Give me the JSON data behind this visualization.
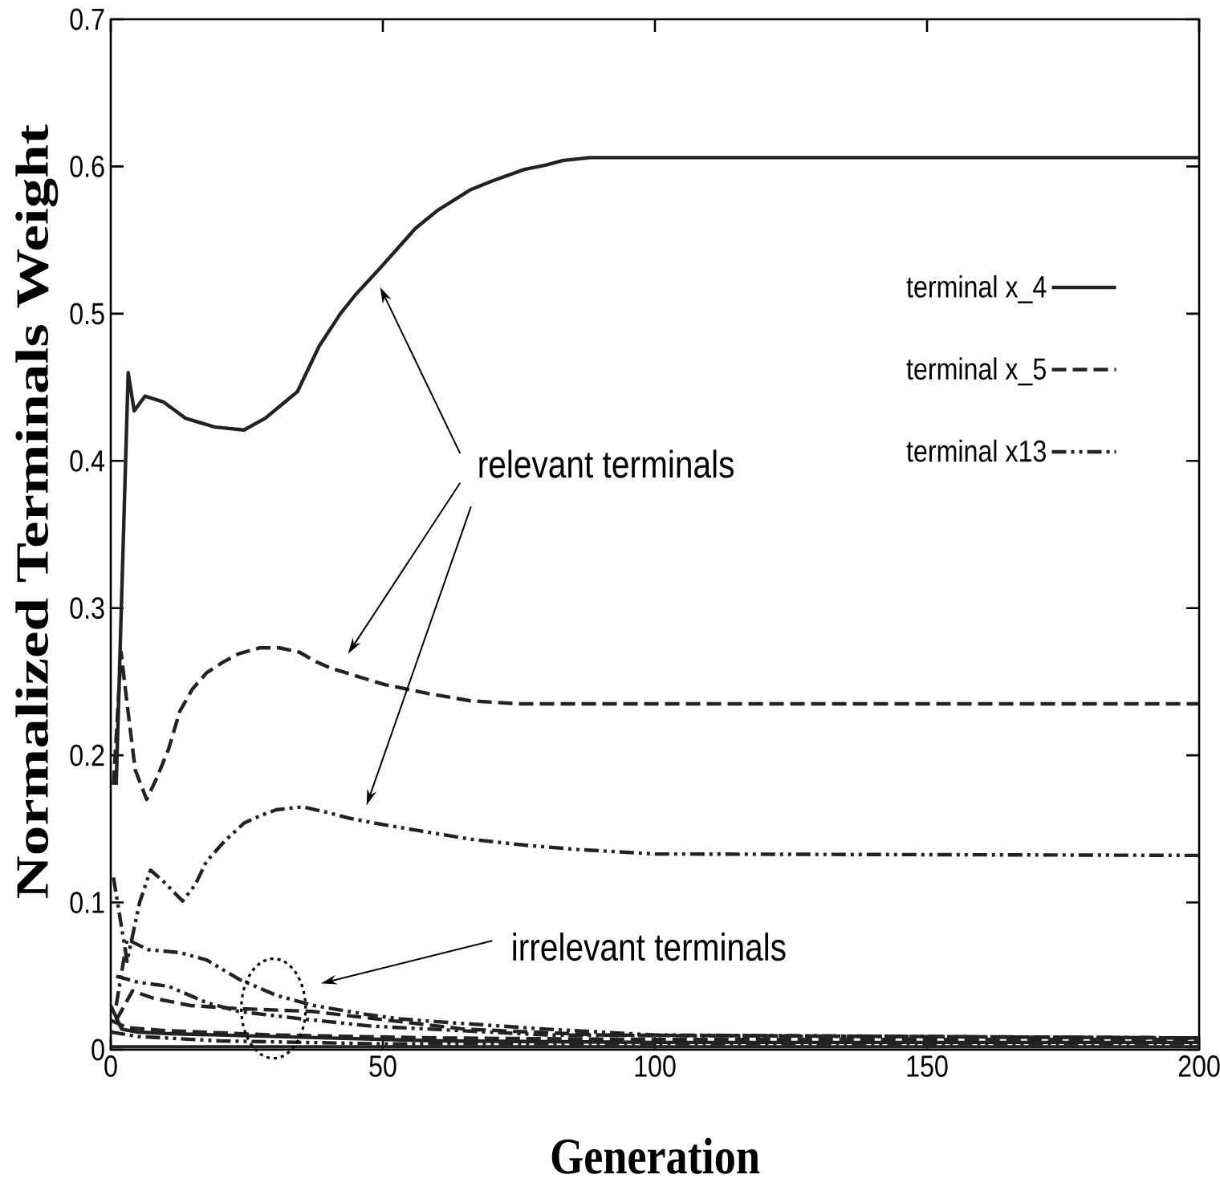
{
  "chart_data": {
    "type": "line",
    "xlabel": "Generation",
    "ylabel": "Normalized Terminals Weight",
    "xlim": [
      0,
      200
    ],
    "ylim": [
      0,
      0.7
    ],
    "xticks": [
      0,
      50,
      100,
      150,
      200
    ],
    "yticks": [
      0,
      0.1,
      0.2,
      0.3,
      0.4,
      0.5,
      0.6,
      0.7
    ],
    "legend": "right",
    "series": [
      {
        "name": "terminal x_4",
        "color": "#222222",
        "line_style": "solid",
        "x": [
          1,
          3.2,
          4.3,
          6.3,
          9.7,
          13.7,
          19.1,
          24.5,
          28.4,
          34.3,
          38.3,
          42.2,
          45,
          49.5,
          56,
          60,
          66,
          70,
          76,
          80,
          83,
          88,
          200
        ],
        "values": [
          0.18,
          0.46,
          0.434,
          0.444,
          0.44,
          0.429,
          0.423,
          0.421,
          0.429,
          0.447,
          0.478,
          0.5,
          0.513,
          0.531,
          0.558,
          0.57,
          0.584,
          0.59,
          0.598,
          0.601,
          0.604,
          0.606,
          0.606
        ]
      },
      {
        "name": "terminal x_5",
        "color": "#222222",
        "line_style": "dashed",
        "x": [
          0.5,
          1.9,
          3,
          4.5,
          6.6,
          8.5,
          10.6,
          12.7,
          15,
          17.6,
          20.5,
          23.5,
          27.4,
          31,
          34.7,
          37.5,
          40.6,
          45,
          50.4,
          58.3,
          66.1,
          75,
          200
        ],
        "values": [
          0.18,
          0.27,
          0.235,
          0.19,
          0.17,
          0.185,
          0.204,
          0.23,
          0.245,
          0.256,
          0.263,
          0.269,
          0.273,
          0.273,
          0.27,
          0.264,
          0.259,
          0.254,
          0.248,
          0.242,
          0.237,
          0.235,
          0.235
        ]
      },
      {
        "name": "terminal x13",
        "color": "#222222",
        "line_style": "dashdot",
        "x": [
          0.5,
          3,
          5.3,
          7.3,
          9.5,
          13.2,
          15.5,
          17.6,
          21,
          24.5,
          27.5,
          30.4,
          35.3,
          40,
          44.2,
          48.4,
          56.3,
          66.1,
          76,
          85.8,
          100,
          200
        ],
        "values": [
          0.117,
          0.06,
          0.1,
          0.122,
          0.115,
          0.101,
          0.112,
          0.128,
          0.142,
          0.154,
          0.159,
          0.163,
          0.165,
          0.161,
          0.157,
          0.154,
          0.149,
          0.143,
          0.139,
          0.136,
          0.133,
          0.132
        ]
      },
      {
        "color": "#222222",
        "line_style": "dashdot",
        "x": [
          1,
          3,
          6.8,
          12.7,
          17.6,
          23.5,
          30.4,
          37.3,
          47,
          53,
          60,
          80,
          100,
          200
        ],
        "values": [
          0.03,
          0.075,
          0.068,
          0.066,
          0.061,
          0.048,
          0.037,
          0.03,
          0.024,
          0.021,
          0.019,
          0.014,
          0.01,
          0.008
        ]
      },
      {
        "color": "#222222",
        "line_style": "dashed",
        "x": [
          1,
          4,
          7.8,
          14.7,
          23,
          37,
          51,
          65,
          90,
          200
        ],
        "values": [
          0.02,
          0.04,
          0.035,
          0.03,
          0.028,
          0.026,
          0.02,
          0.014,
          0.01,
          0.008
        ]
      },
      {
        "color": "#222222",
        "line_style": "dashdot",
        "x": [
          1,
          4.8,
          10.7,
          17.6,
          23.5,
          35,
          48,
          80,
          200
        ],
        "values": [
          0.05,
          0.046,
          0.043,
          0.032,
          0.026,
          0.021,
          0.016,
          0.01,
          0.008
        ]
      },
      {
        "color": "#222222",
        "line_style": "solid",
        "x": [
          0,
          2,
          5,
          10,
          20,
          40,
          60,
          100,
          200
        ],
        "values": [
          0.03,
          0.014,
          0.012,
          0.011,
          0.01,
          0.008,
          0.006,
          0.005,
          0.005
        ]
      },
      {
        "color": "#222222",
        "line_style": "dashed",
        "x": [
          0,
          3,
          10,
          30,
          60,
          100,
          200
        ],
        "values": [
          0.02,
          0.015,
          0.013,
          0.01,
          0.008,
          0.007,
          0.007
        ]
      },
      {
        "color": "#222222",
        "line_style": "dashdot",
        "x": [
          0,
          5,
          20,
          50,
          200
        ],
        "values": [
          0.012,
          0.009,
          0.006,
          0.004,
          0.004
        ]
      },
      {
        "color": "#222222",
        "line_style": "solid",
        "x": [
          0,
          200
        ],
        "values": [
          0.002,
          0.002
        ]
      }
    ],
    "annotations": [
      "relevant terminals",
      "irrelevant terminals"
    ]
  }
}
